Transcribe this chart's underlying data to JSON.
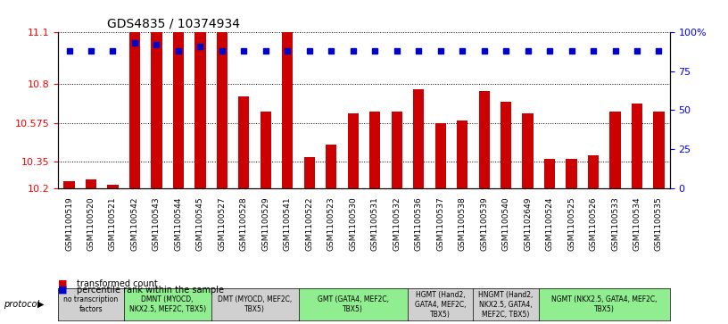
{
  "title": "GDS4835 / 10374934",
  "samples": [
    "GSM1100519",
    "GSM1100520",
    "GSM1100521",
    "GSM1100542",
    "GSM1100543",
    "GSM1100544",
    "GSM1100545",
    "GSM1100527",
    "GSM1100528",
    "GSM1100529",
    "GSM1100541",
    "GSM1100522",
    "GSM1100523",
    "GSM1100530",
    "GSM1100531",
    "GSM1100532",
    "GSM1100536",
    "GSM1100537",
    "GSM1100538",
    "GSM1100539",
    "GSM1100540",
    "GSM1102649",
    "GSM1100524",
    "GSM1100525",
    "GSM1100526",
    "GSM1100533",
    "GSM1100534",
    "GSM1100535"
  ],
  "bar_values": [
    10.24,
    10.25,
    10.22,
    11.1,
    11.1,
    11.1,
    11.1,
    11.1,
    10.73,
    10.64,
    11.1,
    10.38,
    10.45,
    10.63,
    10.64,
    10.64,
    10.77,
    10.575,
    10.59,
    10.76,
    10.7,
    10.63,
    10.37,
    10.37,
    10.39,
    10.64,
    10.69,
    10.64
  ],
  "percentile_values": [
    88,
    88,
    88,
    93,
    92,
    88,
    91,
    88,
    88,
    88,
    88,
    88,
    88,
    88,
    88,
    88,
    88,
    88,
    88,
    88,
    88,
    88,
    88,
    88,
    88,
    88,
    88,
    88
  ],
  "protocols": [
    {
      "label": "no transcription\nfactors",
      "start": 0,
      "end": 3,
      "color": "#d0d0d0"
    },
    {
      "label": "DMNT (MYOCD,\nNKX2.5, MEF2C, TBX5)",
      "start": 3,
      "end": 7,
      "color": "#90ee90"
    },
    {
      "label": "DMT (MYOCD, MEF2C,\nTBX5)",
      "start": 7,
      "end": 11,
      "color": "#d0d0d0"
    },
    {
      "label": "GMT (GATA4, MEF2C,\nTBX5)",
      "start": 11,
      "end": 16,
      "color": "#90ee90"
    },
    {
      "label": "HGMT (Hand2,\nGATA4, MEF2C,\nTBX5)",
      "start": 16,
      "end": 19,
      "color": "#d0d0d0"
    },
    {
      "label": "HNGMT (Hand2,\nNKX2.5, GATA4,\nMEF2C, TBX5)",
      "start": 19,
      "end": 22,
      "color": "#d0d0d0"
    },
    {
      "label": "NGMT (NKX2.5, GATA4, MEF2C,\nTBX5)",
      "start": 22,
      "end": 28,
      "color": "#90ee90"
    }
  ],
  "ylim_left": [
    10.2,
    11.1
  ],
  "ylim_right": [
    0,
    100
  ],
  "yticks_left": [
    10.2,
    10.35,
    10.575,
    10.8,
    11.1
  ],
  "ytick_labels_left": [
    "10.2",
    "10.35",
    "10.575",
    "10.8",
    "11.1"
  ],
  "yticks_right": [
    0,
    25,
    50,
    75,
    100
  ],
  "ytick_labels_right": [
    "0",
    "25",
    "50",
    "75",
    "100%"
  ],
  "bar_color": "#cc0000",
  "dot_color": "#0000cc",
  "background_color": "#ffffff",
  "grid_color": "#000000"
}
